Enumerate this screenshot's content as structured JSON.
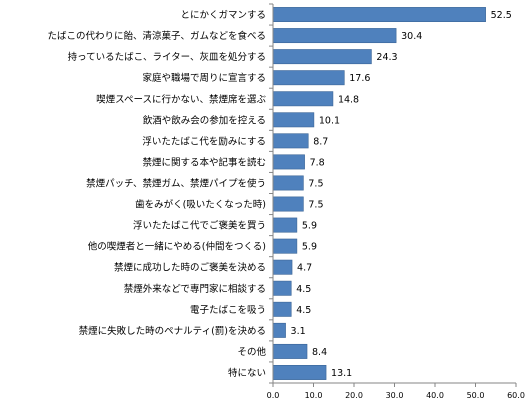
{
  "chart_data": {
    "type": "bar",
    "orientation": "horizontal",
    "categories": [
      "とにかくガマンする",
      "たばこの代わりに飴、清涼菓子、ガムなどを食べる",
      "持っているたばこ、ライター、灰皿を処分する",
      "家庭や職場で周りに宣言する",
      "喫煙スペースに行かない、禁煙席を選ぶ",
      "飲酒や飲み会の参加を控える",
      "浮いたたばこ代を励みにする",
      "禁煙に関する本や記事を読む",
      "禁煙パッチ、禁煙ガム、禁煙パイプを使う",
      "歯をみがく(吸いたくなった時)",
      "浮いたたばこ代でご褒美を買う",
      "他の喫煙者と一緒にやめる(仲間をつくる)",
      "禁煙に成功した時のご褒美を決める",
      "禁煙外来などで専門家に相談する",
      "電子たばこを吸う",
      "禁煙に失敗した時のペナルティ(罰)を決める",
      "その他",
      "特にない"
    ],
    "values": [
      52.5,
      30.4,
      24.3,
      17.6,
      14.8,
      10.1,
      8.7,
      7.8,
      7.5,
      7.5,
      5.9,
      5.9,
      4.7,
      4.5,
      4.5,
      3.1,
      8.4,
      13.1
    ],
    "value_labels": [
      "52.5",
      "30.4",
      "24.3",
      "17.6",
      "14.8",
      "10.1",
      "8.7",
      "7.8",
      "7.5",
      "7.5",
      "5.9",
      "5.9",
      "4.7",
      "4.5",
      "4.5",
      "3.1",
      "8.4",
      "13.1"
    ],
    "xlim": [
      0,
      60
    ],
    "xticks": [
      "0.0",
      "10.0",
      "20.0",
      "30.0",
      "40.0",
      "50.0",
      "60.0"
    ],
    "grid": false,
    "bar_color": "#4F81BD",
    "bar_edge_color": "#3A6496"
  }
}
